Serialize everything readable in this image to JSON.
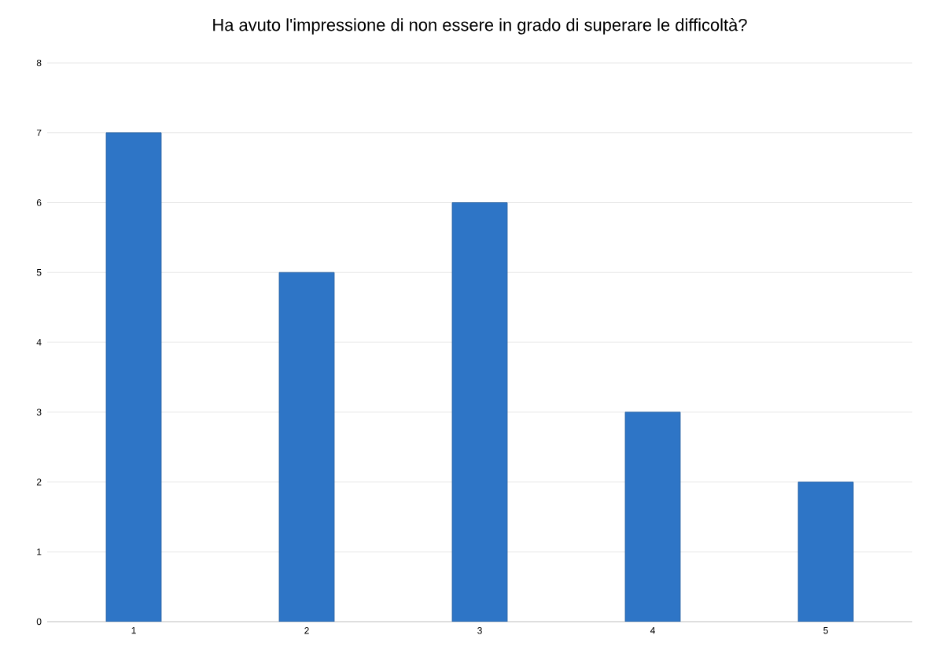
{
  "chart_data": {
    "type": "bar",
    "title": "Ha avuto l'impressione di non essere in grado di superare le difficoltà?",
    "categories": [
      "1",
      "2",
      "3",
      "4",
      "5"
    ],
    "values": [
      7,
      5,
      6,
      3,
      2
    ],
    "color": "#2e75c6",
    "ylim": [
      0,
      8
    ],
    "yticks": [
      0,
      1,
      2,
      3,
      4,
      5,
      6,
      7,
      8
    ],
    "grid": "y"
  }
}
